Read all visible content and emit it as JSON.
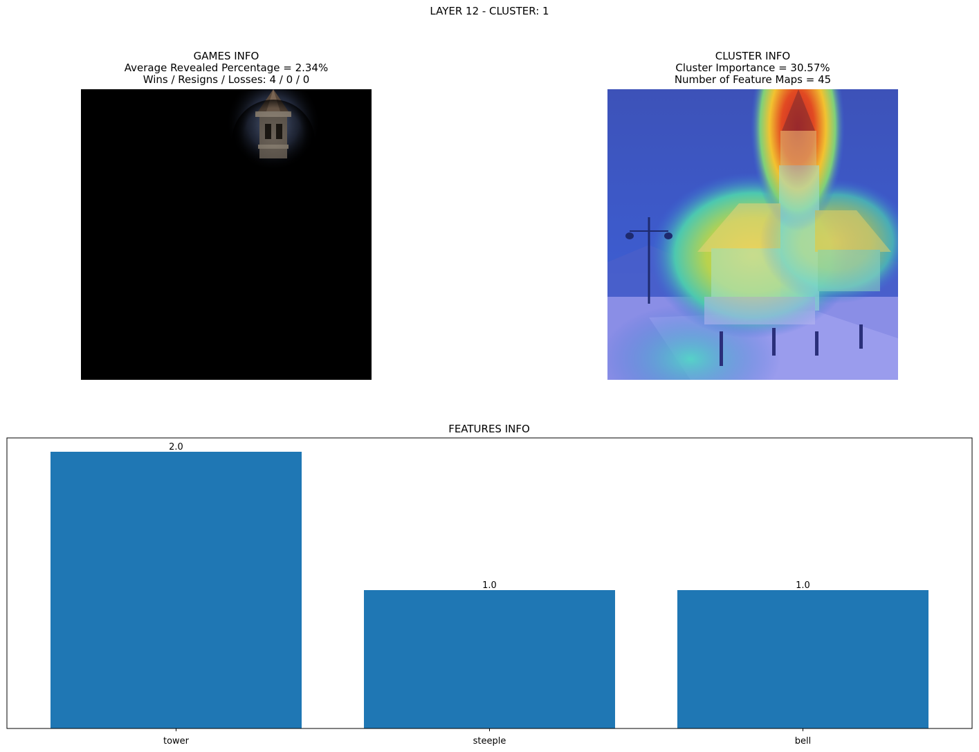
{
  "figure": {
    "suptitle": "LAYER 12 - CLUSTER: 1"
  },
  "games_panel": {
    "title": "GAMES INFO",
    "line1": "Average Revealed Percentage = 2.34%",
    "line2": "Wins / Resigns / Losses: 4 / 0 / 0"
  },
  "cluster_panel": {
    "title": "CLUSTER INFO",
    "line1": "Cluster Importance = 30.57%",
    "line2": "Number of Feature Maps = 45"
  },
  "chart_data": {
    "type": "bar",
    "title": "FEATURES INFO",
    "categories": [
      "tower",
      "steeple",
      "bell"
    ],
    "values": [
      2.0,
      1.0,
      1.0
    ],
    "value_labels": [
      "2.0",
      "1.0",
      "1.0"
    ],
    "xlabel": "",
    "ylabel": "",
    "ylim": [
      0,
      2.1
    ],
    "grid": false,
    "y_ticks_visible": false,
    "bar_color": "#1f77b4"
  }
}
